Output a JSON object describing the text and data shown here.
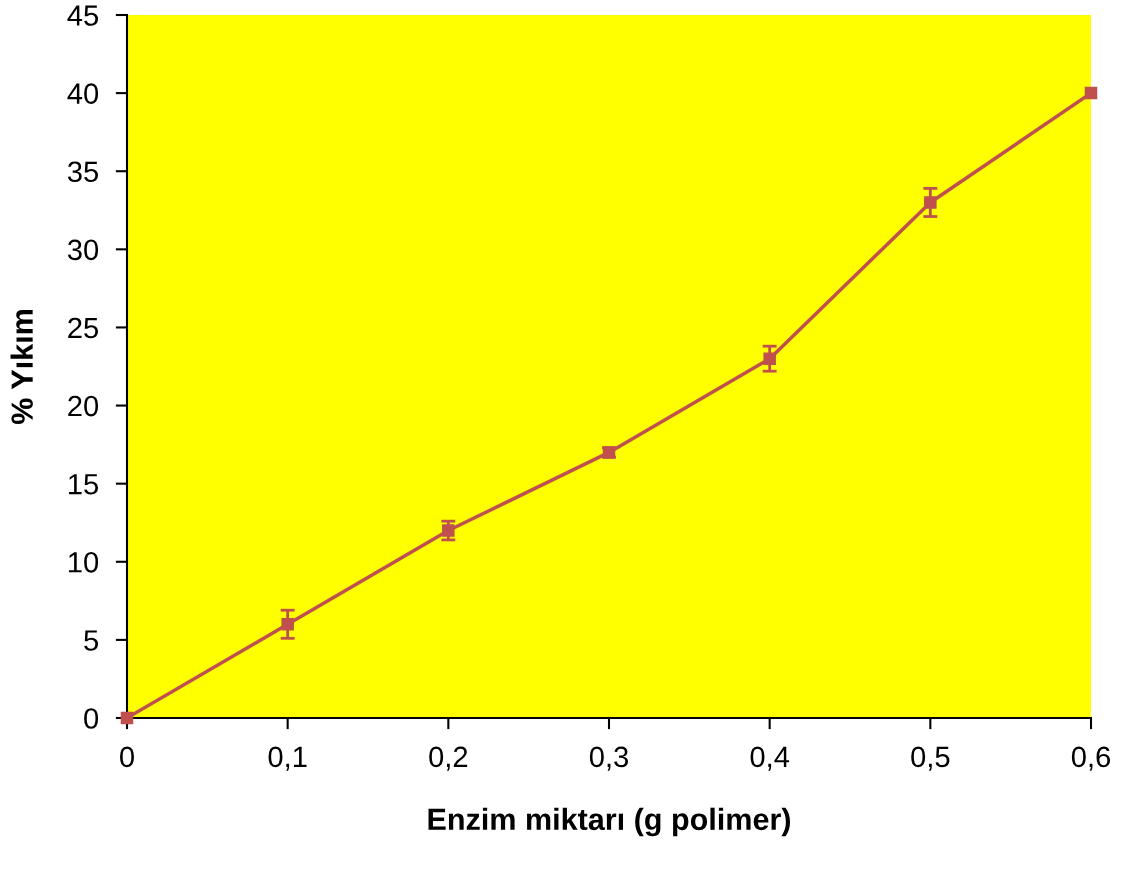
{
  "chart_data": {
    "type": "line",
    "xlabel": "Enzim miktarı (g polimer)",
    "ylabel": "% Yıkım",
    "x": [
      0,
      0.1,
      0.2,
      0.3,
      0.4,
      0.5,
      0.6
    ],
    "series": [
      {
        "color": "#c0504d",
        "values": [
          0,
          6,
          12,
          17,
          23,
          33,
          40
        ],
        "errors": [
          null,
          0.9,
          0.6,
          0.3,
          0.8,
          0.9,
          null
        ]
      }
    ],
    "xlim": [
      0,
      0.6
    ],
    "ylim": [
      0,
      45
    ],
    "xticks": [
      {
        "value": 0,
        "label": "0"
      },
      {
        "value": 0.1,
        "label": "0,1"
      },
      {
        "value": 0.2,
        "label": "0,2"
      },
      {
        "value": 0.3,
        "label": "0,3"
      },
      {
        "value": 0.4,
        "label": "0,4"
      },
      {
        "value": 0.5,
        "label": "0,5"
      },
      {
        "value": 0.6,
        "label": "0,6"
      }
    ],
    "yticks": [
      0,
      5,
      10,
      15,
      20,
      25,
      30,
      35,
      40,
      45
    ],
    "grid": false,
    "marker": "square",
    "line_style": "solid"
  }
}
